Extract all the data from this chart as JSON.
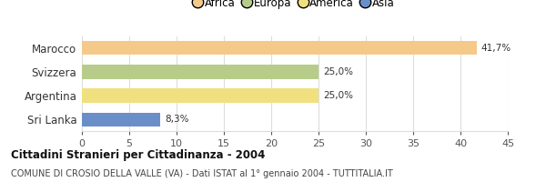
{
  "categories": [
    "Marocco",
    "Svizzera",
    "Argentina",
    "Sri Lanka"
  ],
  "values": [
    41.7,
    25.0,
    25.0,
    8.3
  ],
  "bar_colors": [
    "#f5c98a",
    "#b8cc8a",
    "#f0e080",
    "#6a8fc8"
  ],
  "legend_labels": [
    "Africa",
    "Europa",
    "America",
    "Asia"
  ],
  "legend_colors": [
    "#f5c98a",
    "#b8cc8a",
    "#f0e080",
    "#6a8fc8"
  ],
  "value_labels": [
    "41,7%",
    "25,0%",
    "25,0%",
    "8,3%"
  ],
  "xlim": [
    0,
    45
  ],
  "xticks": [
    0,
    5,
    10,
    15,
    20,
    25,
    30,
    35,
    40,
    45
  ],
  "title": "Cittadini Stranieri per Cittadinanza - 2004",
  "subtitle": "COMUNE DI CROSIO DELLA VALLE (VA) - Dati ISTAT al 1° gennaio 2004 - TUTTITALIA.IT",
  "background_color": "#ffffff",
  "grid_color": "#dddddd"
}
